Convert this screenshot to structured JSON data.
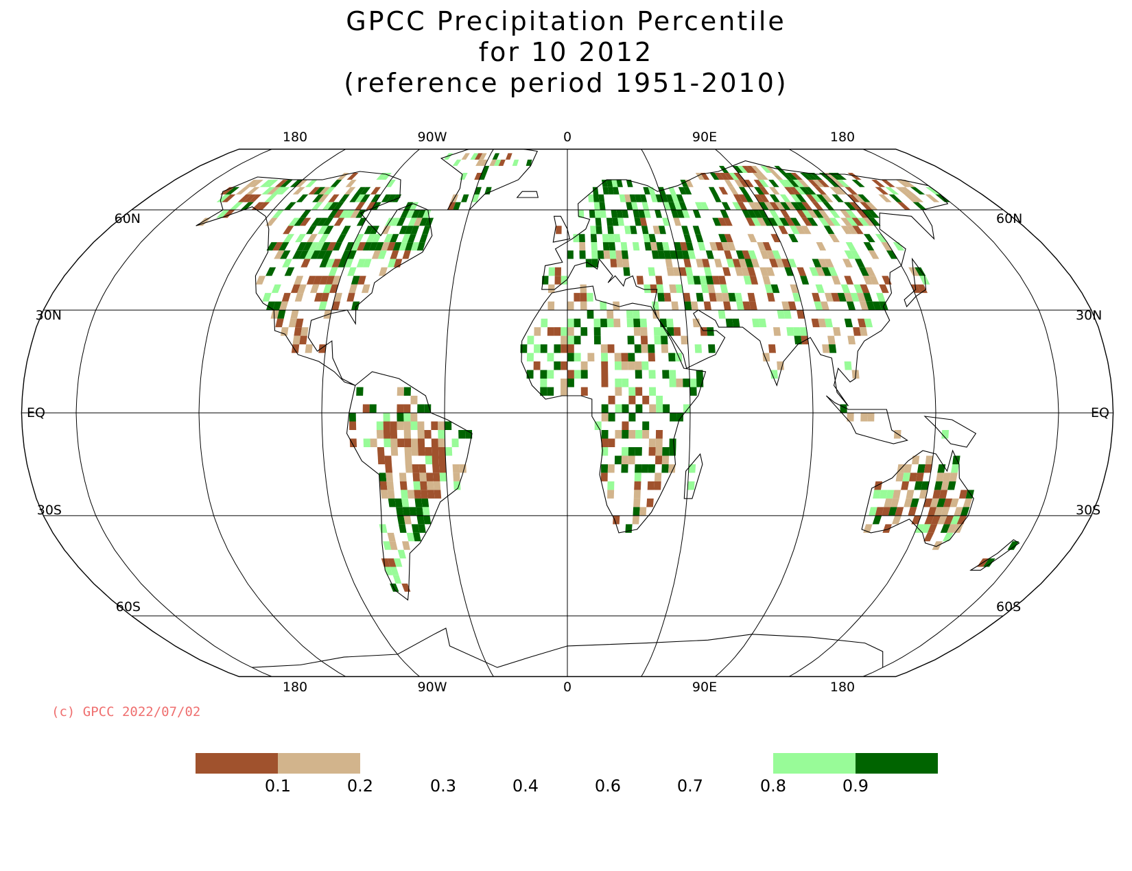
{
  "title": {
    "line1": "GPCC Precipitation Percentile",
    "line2": "for 10 2012",
    "line3": "(reference period 1951-2010)"
  },
  "map": {
    "projection": "robinson",
    "central_meridian": 0,
    "extent_lon": [
      -200,
      200
    ],
    "top_lon_labels": [
      "180",
      "90W",
      "0",
      "90E",
      "180"
    ],
    "bottom_lon_labels": [
      "180",
      "90W",
      "0",
      "90E",
      "180"
    ],
    "lat_labels_left": [
      "60N",
      "30N",
      "EQ",
      "30S",
      "60S"
    ],
    "lat_labels_right": [
      "60N",
      "30N",
      "EQ",
      "30S",
      "60S"
    ],
    "meridians": [
      -180,
      -135,
      -90,
      -45,
      0,
      45,
      90,
      135,
      180
    ],
    "parallels": [
      60,
      30,
      0,
      -30,
      -60
    ]
  },
  "copyright": "(c) GPCC 2022/07/02",
  "colorbar": {
    "labels": [
      "0.1",
      "0.2",
      "0.3",
      "0.4",
      "0.6",
      "0.7",
      "0.8",
      "0.9"
    ],
    "bins": [
      {
        "range": "< 0.1",
        "color": "#a0522d"
      },
      {
        "range": "0.1 - 0.2",
        "color": "#d2b48c"
      },
      {
        "range": "0.2 - 0.8",
        "color": "#ffffff"
      },
      {
        "range": "0.8 - 0.9",
        "color": "#98fb98"
      },
      {
        "range": "> 0.9",
        "color": "#006400"
      }
    ]
  },
  "colors": {
    "very_dry": "#a0522d",
    "dry": "#d2b48c",
    "wet": "#98fb98",
    "very_wet": "#006400",
    "copyright": "#ef6f6f"
  },
  "legend_colors_note": "percentile classes shown as filled grid cells on land"
}
